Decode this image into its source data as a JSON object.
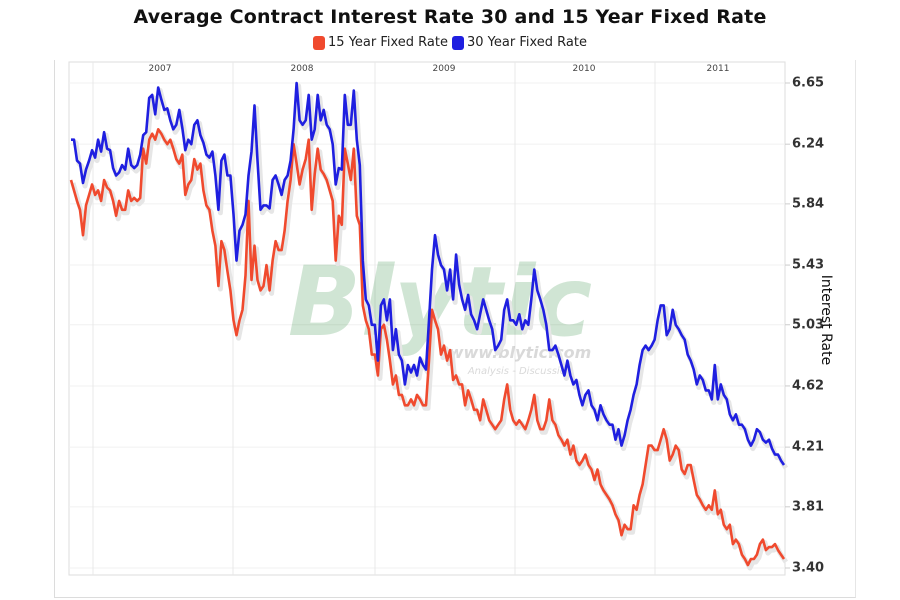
{
  "header": {
    "title": "Average Contract Interest Rate 30 and 15 Year Fixed Rate"
  },
  "legend": [
    {
      "label": "15 Year Fixed Rate",
      "color": "#f04a2e"
    },
    {
      "label": "30 Year Fixed Rate",
      "color": "#1f1fe0"
    }
  ],
  "watermark": {
    "logo": "Blytic",
    "url": "www.blytic.com",
    "tagline": "Analysis - Discussion"
  },
  "chart_data": {
    "type": "line",
    "title": "Average Contract Interest Rate 30 and 15 Year Fixed Rate",
    "xlabel": "",
    "ylabel": "Interest Rate",
    "y_axis_position": "right",
    "ylim": [
      3.4,
      6.65
    ],
    "y_ticks": [
      "6.65",
      "6.24",
      "5.84",
      "5.43",
      "5.03",
      "4.62",
      "4.21",
      "3.81",
      "3.40"
    ],
    "x_ticks": [
      "2007",
      "2008",
      "2009",
      "2010",
      "2011"
    ],
    "x_range_approx": [
      "2006-07",
      "2011-08"
    ],
    "grid": true,
    "legend_position": "top",
    "series": [
      {
        "name": "15 Year Fixed Rate",
        "color": "#f04a2e",
        "values": [
          6.0,
          5.93,
          5.86,
          5.8,
          5.63,
          5.83,
          5.9,
          5.97,
          5.9,
          5.93,
          5.86,
          6.0,
          5.95,
          5.93,
          5.86,
          5.76,
          5.86,
          5.8,
          5.8,
          5.93,
          5.86,
          5.88,
          5.86,
          5.88,
          6.21,
          6.11,
          6.27,
          6.31,
          6.27,
          6.34,
          6.31,
          6.27,
          6.24,
          6.27,
          6.21,
          6.14,
          6.11,
          6.17,
          5.9,
          5.97,
          6.0,
          6.14,
          6.07,
          6.11,
          5.93,
          5.83,
          5.8,
          5.66,
          5.56,
          5.29,
          5.59,
          5.53,
          5.39,
          5.26,
          5.06,
          4.96,
          5.06,
          5.13,
          5.36,
          5.86,
          5.33,
          5.56,
          5.33,
          5.26,
          5.29,
          5.43,
          5.26,
          5.46,
          5.59,
          5.53,
          5.53,
          5.66,
          5.86,
          6.0,
          6.24,
          6.11,
          5.97,
          6.07,
          6.14,
          6.27,
          5.8,
          6.04,
          6.21,
          6.07,
          6.04,
          6.0,
          5.93,
          5.86,
          5.46,
          5.76,
          5.7,
          6.21,
          6.11,
          6.0,
          6.21,
          5.76,
          5.7,
          5.16,
          5.06,
          5.0,
          4.83,
          4.83,
          4.69,
          5.0,
          5.03,
          4.93,
          4.79,
          4.63,
          4.69,
          4.56,
          4.56,
          4.49,
          4.49,
          4.53,
          4.49,
          4.56,
          4.53,
          4.49,
          4.49,
          4.79,
          5.13,
          5.06,
          5.0,
          4.83,
          4.89,
          4.79,
          4.86,
          4.66,
          4.69,
          4.63,
          4.63,
          4.49,
          4.59,
          4.53,
          4.46,
          4.46,
          4.39,
          4.53,
          4.46,
          4.39,
          4.36,
          4.33,
          4.36,
          4.39,
          4.53,
          4.63,
          4.46,
          4.39,
          4.36,
          4.39,
          4.36,
          4.33,
          4.39,
          4.46,
          4.56,
          4.39,
          4.33,
          4.33,
          4.39,
          4.53,
          4.39,
          4.36,
          4.29,
          4.26,
          4.22,
          4.26,
          4.16,
          4.22,
          4.12,
          4.09,
          4.12,
          4.16,
          4.09,
          4.06,
          3.99,
          4.06,
          3.96,
          3.92,
          3.89,
          3.86,
          3.82,
          3.76,
          3.72,
          3.62,
          3.69,
          3.66,
          3.66,
          3.82,
          3.79,
          3.89,
          3.96,
          4.09,
          4.22,
          4.22,
          4.19,
          4.19,
          4.26,
          4.33,
          4.26,
          4.12,
          4.16,
          4.22,
          4.19,
          4.06,
          4.03,
          4.09,
          4.09,
          3.99,
          3.89,
          3.86,
          3.82,
          3.79,
          3.82,
          3.79,
          3.92,
          3.76,
          3.79,
          3.69,
          3.66,
          3.69,
          3.56,
          3.59,
          3.56,
          3.49,
          3.46,
          3.42,
          3.46,
          3.46,
          3.49,
          3.56,
          3.59,
          3.52,
          3.54,
          3.54,
          3.56,
          3.52,
          3.49,
          3.46
        ]
      },
      {
        "name": "30 Year Fixed Rate",
        "color": "#1f1fe0",
        "values": [
          6.27,
          6.27,
          6.13,
          6.11,
          5.98,
          6.07,
          6.13,
          6.2,
          6.15,
          6.27,
          6.19,
          6.32,
          6.21,
          6.2,
          6.08,
          6.03,
          6.05,
          6.1,
          6.07,
          6.21,
          6.1,
          6.08,
          6.1,
          6.17,
          6.3,
          6.32,
          6.55,
          6.57,
          6.44,
          6.62,
          6.54,
          6.47,
          6.48,
          6.4,
          6.34,
          6.37,
          6.47,
          6.35,
          6.2,
          6.27,
          6.24,
          6.37,
          6.4,
          6.3,
          6.25,
          6.17,
          6.15,
          6.19,
          6.03,
          5.8,
          6.13,
          6.17,
          6.03,
          6.03,
          5.77,
          5.46,
          5.66,
          5.7,
          5.77,
          6.03,
          6.19,
          6.5,
          6.13,
          5.8,
          5.83,
          5.83,
          5.81,
          6.0,
          6.03,
          5.97,
          5.9,
          6.0,
          6.03,
          6.13,
          6.34,
          6.65,
          6.4,
          6.37,
          6.4,
          6.57,
          6.27,
          6.34,
          6.57,
          6.4,
          6.47,
          6.37,
          6.34,
          6.24,
          5.97,
          6.08,
          6.07,
          6.57,
          6.37,
          6.37,
          6.6,
          6.27,
          6.1,
          5.46,
          5.2,
          5.16,
          5.03,
          5.03,
          4.79,
          5.16,
          5.2,
          5.06,
          5.2,
          4.86,
          5.0,
          4.83,
          4.79,
          4.63,
          4.76,
          4.71,
          4.76,
          4.69,
          4.81,
          4.76,
          4.73,
          5.06,
          5.4,
          5.63,
          5.5,
          5.43,
          5.4,
          5.26,
          5.4,
          5.2,
          5.5,
          5.3,
          5.2,
          5.13,
          5.23,
          5.1,
          5.06,
          5.0,
          5.1,
          5.2,
          5.13,
          5.06,
          5.0,
          4.86,
          4.89,
          4.93,
          5.13,
          5.2,
          5.06,
          5.06,
          5.03,
          5.1,
          5.0,
          5.06,
          5.03,
          5.2,
          5.4,
          5.26,
          5.2,
          5.13,
          5.03,
          4.86,
          4.86,
          4.89,
          4.83,
          4.76,
          4.69,
          4.79,
          4.69,
          4.63,
          4.66,
          4.56,
          4.49,
          4.56,
          4.59,
          4.49,
          4.46,
          4.39,
          4.49,
          4.43,
          4.39,
          4.36,
          4.36,
          4.26,
          4.33,
          4.22,
          4.29,
          4.39,
          4.46,
          4.56,
          4.63,
          4.76,
          4.86,
          4.89,
          4.86,
          4.89,
          4.93,
          5.06,
          5.16,
          5.16,
          4.96,
          5.0,
          5.13,
          5.03,
          5.0,
          4.96,
          4.93,
          4.83,
          4.79,
          4.73,
          4.63,
          4.69,
          4.66,
          4.59,
          4.59,
          4.53,
          4.76,
          4.53,
          4.63,
          4.56,
          4.53,
          4.43,
          4.39,
          4.43,
          4.36,
          4.36,
          4.33,
          4.26,
          4.22,
          4.26,
          4.33,
          4.31,
          4.26,
          4.24,
          4.26,
          4.2,
          4.16,
          4.16,
          4.12,
          4.09
        ]
      }
    ]
  }
}
